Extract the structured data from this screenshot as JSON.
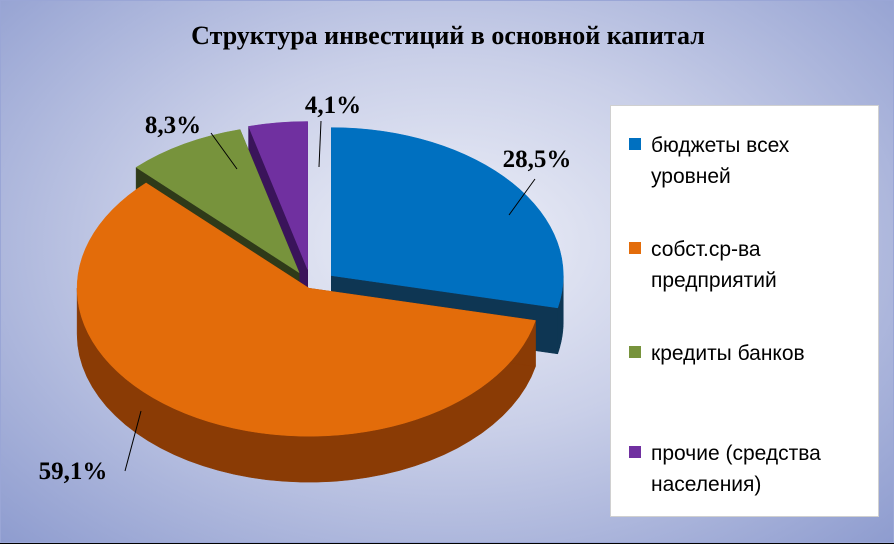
{
  "chart_data": {
    "type": "pie",
    "title": "Структура инвестиций в основной капитал",
    "slices": [
      {
        "name": "бюджеты всех уровней",
        "value": 28.5,
        "label": "28,5%",
        "color": "#0070c0",
        "side_color": "#0e3653"
      },
      {
        "name": "собст.ср-ва предприятий",
        "value": 59.1,
        "label": "59,1%",
        "color": "#e36c0a",
        "side_color": "#8a3b05"
      },
      {
        "name": "кредиты банков",
        "value": 8.3,
        "label": "8,3%",
        "color": "#77933c",
        "side_color": "#2f3a19"
      },
      {
        "name": "прочие (средства населения)",
        "value": 4.1,
        "label": "4,1%",
        "color": "#7030a0",
        "side_color": "#3a145a"
      }
    ],
    "legend_position": "right",
    "three_d": true,
    "exploded": true
  }
}
